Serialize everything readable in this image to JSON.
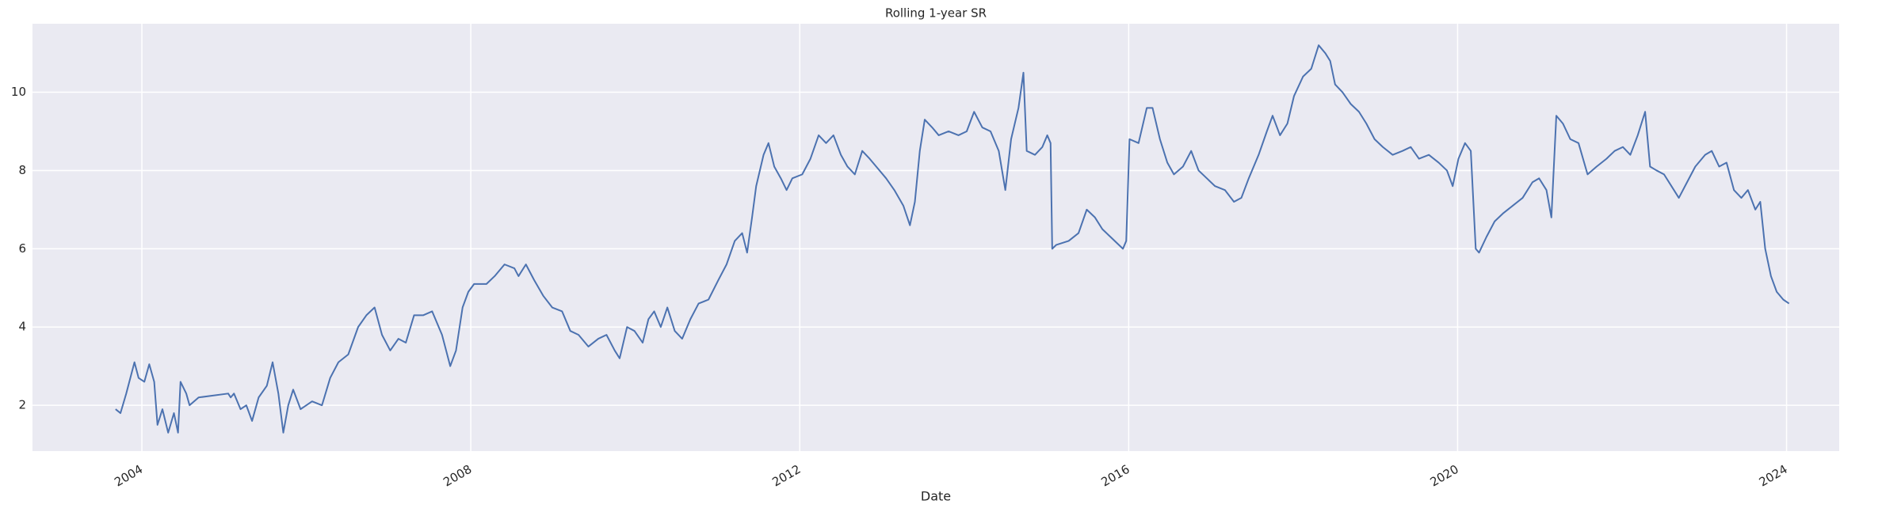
{
  "chart_data": {
    "type": "line",
    "title": "Rolling 1-year SR",
    "x_label": "Date",
    "x": [
      2003.68,
      2003.74,
      2003.81,
      2003.91,
      2003.96,
      2004.03,
      2004.09,
      2004.15,
      2004.19,
      2004.25,
      2004.32,
      2004.39,
      2004.44,
      2004.47,
      2004.54,
      2004.58,
      2004.69,
      2005.05,
      2005.08,
      2005.12,
      2005.2,
      2005.27,
      2005.34,
      2005.42,
      2005.52,
      2005.59,
      2005.66,
      2005.72,
      2005.78,
      2005.84,
      2005.93,
      2006.07,
      2006.19,
      2006.29,
      2006.39,
      2006.51,
      2006.63,
      2006.73,
      2006.83,
      2006.92,
      2007.02,
      2007.12,
      2007.21,
      2007.31,
      2007.42,
      2007.53,
      2007.65,
      2007.75,
      2007.82,
      2007.9,
      2007.97,
      2008.04,
      2008.19,
      2008.29,
      2008.41,
      2008.53,
      2008.58,
      2008.67,
      2008.77,
      2008.88,
      2008.99,
      2009.11,
      2009.21,
      2009.31,
      2009.43,
      2009.55,
      2009.65,
      2009.75,
      2009.81,
      2009.9,
      2009.99,
      2010.09,
      2010.16,
      2010.23,
      2010.31,
      2010.39,
      2010.48,
      2010.57,
      2010.67,
      2010.77,
      2010.89,
      2011.01,
      2011.11,
      2011.21,
      2011.3,
      2011.36,
      2011.42,
      2011.47,
      2011.56,
      2011.62,
      2011.69,
      2011.77,
      2011.84,
      2011.91,
      2012.03,
      2012.13,
      2012.23,
      2012.32,
      2012.41,
      2012.5,
      2012.58,
      2012.67,
      2012.76,
      2012.85,
      2012.93,
      2013.05,
      2013.15,
      2013.26,
      2013.34,
      2013.4,
      2013.46,
      2013.52,
      2013.61,
      2013.69,
      2013.81,
      2013.93,
      2014.03,
      2014.12,
      2014.22,
      2014.32,
      2014.42,
      2014.5,
      2014.57,
      2014.66,
      2014.72,
      2014.76,
      2014.86,
      2014.95,
      2015.01,
      2015.05,
      2015.07,
      2015.12,
      2015.27,
      2015.39,
      2015.49,
      2015.59,
      2015.68,
      2015.78,
      2015.93,
      2015.97,
      2016.01,
      2016.12,
      2016.22,
      2016.29,
      2016.38,
      2016.47,
      2016.55,
      2016.66,
      2016.76,
      2016.85,
      2016.95,
      2017.05,
      2017.17,
      2017.28,
      2017.37,
      2017.46,
      2017.58,
      2017.68,
      2017.75,
      2017.84,
      2017.93,
      2018.01,
      2018.12,
      2018.22,
      2018.31,
      2018.39,
      2018.45,
      2018.51,
      2018.6,
      2018.7,
      2018.8,
      2018.89,
      2018.99,
      2019.09,
      2019.21,
      2019.33,
      2019.43,
      2019.53,
      2019.65,
      2019.77,
      2019.87,
      2019.94,
      2020.01,
      2020.09,
      2020.16,
      2020.22,
      2020.26,
      2020.35,
      2020.45,
      2020.55,
      2020.67,
      2020.79,
      2020.91,
      2020.99,
      2021.08,
      2021.14,
      2021.2,
      2021.28,
      2021.37,
      2021.47,
      2021.58,
      2021.69,
      2021.81,
      2021.91,
      2022.01,
      2022.1,
      2022.19,
      2022.28,
      2022.34,
      2022.42,
      2022.51,
      2022.6,
      2022.69,
      2022.79,
      2022.89,
      2023.01,
      2023.09,
      2023.18,
      2023.27,
      2023.36,
      2023.45,
      2023.53,
      2023.62,
      2023.68,
      2023.74,
      2023.81,
      2023.88,
      2023.96,
      2024.03
    ],
    "values": [
      1.9,
      1.8,
      2.3,
      3.1,
      2.7,
      2.6,
      3.05,
      2.6,
      1.5,
      1.9,
      1.3,
      1.8,
      1.3,
      2.6,
      2.3,
      2.0,
      2.2,
      2.3,
      2.2,
      2.3,
      1.9,
      2.0,
      1.6,
      2.2,
      2.5,
      3.1,
      2.3,
      1.3,
      2.0,
      2.4,
      1.9,
      2.1,
      2.0,
      2.7,
      3.1,
      3.3,
      4.0,
      4.3,
      4.5,
      3.8,
      3.4,
      3.7,
      3.6,
      4.3,
      4.3,
      4.4,
      3.8,
      3.0,
      3.4,
      4.5,
      4.9,
      5.1,
      5.1,
      5.3,
      5.6,
      5.5,
      5.3,
      5.6,
      5.2,
      4.8,
      4.5,
      4.4,
      3.9,
      3.8,
      3.5,
      3.7,
      3.8,
      3.4,
      3.2,
      4.0,
      3.9,
      3.6,
      4.2,
      4.4,
      4.0,
      4.5,
      3.9,
      3.7,
      4.2,
      4.6,
      4.7,
      5.2,
      5.6,
      6.2,
      6.4,
      5.9,
      6.8,
      7.6,
      8.4,
      8.7,
      8.1,
      7.8,
      7.5,
      7.8,
      7.9,
      8.3,
      8.9,
      8.7,
      8.9,
      8.4,
      8.1,
      7.9,
      8.5,
      8.3,
      8.1,
      7.8,
      7.5,
      7.1,
      6.6,
      7.2,
      8.5,
      9.3,
      9.1,
      8.9,
      9.0,
      8.9,
      9.0,
      9.5,
      9.1,
      9.0,
      8.5,
      7.5,
      8.8,
      9.6,
      10.5,
      8.5,
      8.4,
      8.6,
      8.9,
      8.7,
      6.0,
      6.1,
      6.2,
      6.4,
      7.0,
      6.8,
      6.5,
      6.3,
      6.0,
      6.2,
      8.8,
      8.7,
      9.6,
      9.6,
      8.8,
      8.2,
      7.9,
      8.1,
      8.5,
      8.0,
      7.8,
      7.6,
      7.5,
      7.2,
      7.3,
      7.8,
      8.4,
      9.0,
      9.4,
      8.9,
      9.2,
      9.9,
      10.4,
      10.6,
      11.2,
      11.0,
      10.8,
      10.2,
      10.0,
      9.7,
      9.5,
      9.2,
      8.8,
      8.6,
      8.4,
      8.5,
      8.6,
      8.3,
      8.4,
      8.2,
      8.0,
      7.6,
      8.3,
      8.7,
      8.5,
      6.0,
      5.9,
      6.3,
      6.7,
      6.9,
      7.1,
      7.3,
      7.7,
      7.8,
      7.5,
      6.8,
      9.4,
      9.2,
      8.8,
      8.7,
      7.9,
      8.1,
      8.3,
      8.5,
      8.6,
      8.4,
      8.9,
      9.5,
      8.1,
      8.0,
      7.9,
      7.6,
      7.3,
      7.7,
      8.1,
      8.4,
      8.5,
      8.1,
      8.2,
      7.5,
      7.3,
      7.5,
      7.0,
      7.2,
      6.0,
      5.3,
      4.9,
      4.7,
      4.6
    ],
    "color": "#4c72b0",
    "xlim": [
      2002.67,
      2024.64
    ],
    "ylim": [
      0.83,
      11.75
    ],
    "xticks": [
      2004,
      2008,
      2012,
      2016,
      2020,
      2024
    ],
    "yticks": [
      2,
      4,
      6,
      8,
      10
    ],
    "grid": true
  }
}
